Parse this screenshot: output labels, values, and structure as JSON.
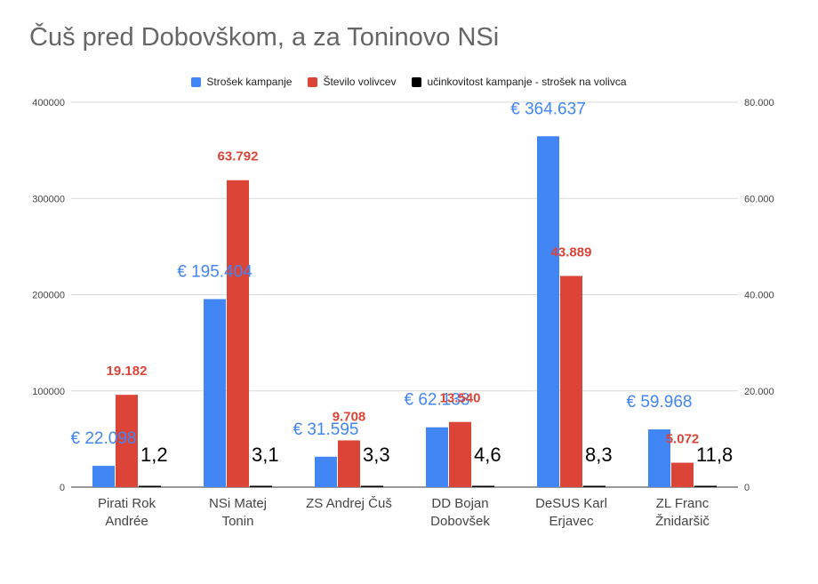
{
  "chart_data": {
    "type": "bar",
    "title": "Čuš pred Dobovškom, a za Toninovo NSi",
    "categories": [
      [
        "Pirati Rok",
        "Andrée"
      ],
      [
        "NSi Matej",
        "Tonin"
      ],
      [
        "ZS Andrej Čuš"
      ],
      [
        "DD Bojan",
        "Dobovšek"
      ],
      [
        "DeSUS Karl",
        "Erjavec"
      ],
      [
        "ZL Franc",
        "Žnidaršič"
      ]
    ],
    "series": [
      {
        "name": "Strošek kampanje",
        "color": "#4285f4",
        "axis": "left",
        "values": [
          22098,
          195404,
          31595,
          62138,
          364637,
          59968
        ],
        "labels": [
          "€ 22.098",
          "€ 195.404",
          "€ 31.595",
          "€ 62.138",
          "€ 364.637",
          "€ 59.968"
        ]
      },
      {
        "name": "Število volivcev",
        "color": "#db4437",
        "axis": "right",
        "values": [
          19182,
          63792,
          9708,
          13540,
          43889,
          5072
        ],
        "labels": [
          "19.182",
          "63.792",
          "9.708",
          "13.540",
          "43.889",
          "5.072"
        ]
      },
      {
        "name": "učinkovitost kampanje - strošek na volivca",
        "color": "#000000",
        "axis": "left",
        "values": [
          1.2,
          3.1,
          3.3,
          4.6,
          8.3,
          11.8
        ],
        "labels": [
          "1,2",
          "3,1",
          "3,3",
          "4,6",
          "8,3",
          "11,8"
        ]
      }
    ],
    "left_axis": {
      "min": 0,
      "max": 400000,
      "ticks": [
        0,
        100000,
        200000,
        300000,
        400000
      ],
      "tick_labels": [
        "0",
        "100000",
        "200000",
        "300000",
        "400000"
      ]
    },
    "right_axis": {
      "min": 0,
      "max": 80000,
      "ticks": [
        0,
        20000,
        40000,
        60000,
        80000
      ],
      "tick_labels": [
        "0",
        "20.000",
        "40.000",
        "60.000",
        "80.000"
      ]
    },
    "legend_position": "top-center",
    "grid": true
  }
}
